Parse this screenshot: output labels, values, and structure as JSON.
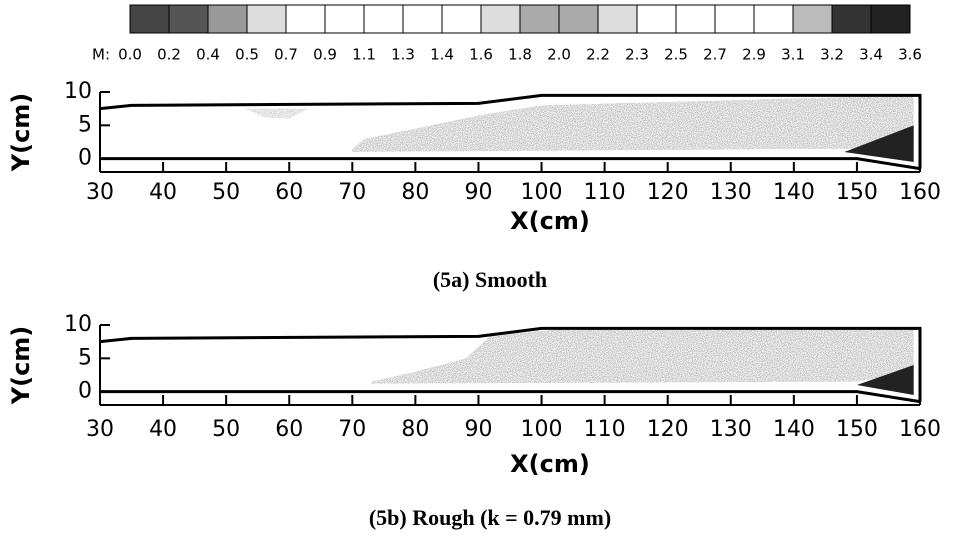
{
  "chart_data": [
    {
      "type": "colorbar",
      "label": "M:",
      "ticks": [
        {
          "value": 0,
          "label": "0.0"
        },
        0.2,
        0.4,
        0.5,
        0.7,
        0.9,
        1.1,
        1.3,
        1.4,
        1.6,
        1.8,
        {
          "value": 2,
          "label": "2.0"
        },
        2.2,
        2.3,
        2.5,
        2.7,
        2.9,
        3.1,
        3.2,
        3.4,
        3.6
      ],
      "colors": [
        "#444444",
        "#555555",
        "#999999",
        "#dddddd",
        "#ffffff",
        "#ffffff",
        "#ffffff",
        "#ffffff",
        "#ffffff",
        "#dddddd",
        "#aaaaaa",
        "#aaaaaa",
        "#dddddd",
        "#ffffff",
        "#ffffff",
        "#ffffff",
        "#ffffff",
        "#bbbbbb",
        "#333333",
        "#222222"
      ]
    },
    {
      "type": "contour",
      "title": "(5a) Smooth",
      "xlabel": "X(cm)",
      "ylabel": "Y(cm)",
      "xlim": [
        30,
        160
      ],
      "xticks": [
        30,
        40,
        50,
        60,
        70,
        80,
        90,
        100,
        110,
        120,
        130,
        140,
        150,
        160
      ],
      "ylim": [
        -2,
        10
      ],
      "yticks": [
        0,
        5,
        10
      ]
    },
    {
      "type": "contour",
      "title": "(5b) Rough (k = 0.79 mm)",
      "xlabel": "X(cm)",
      "ylabel": "Y(cm)",
      "xlim": [
        30,
        160
      ],
      "xticks": [
        30,
        40,
        50,
        60,
        70,
        80,
        90,
        100,
        110,
        120,
        130,
        140,
        150,
        160
      ],
      "ylim": [
        -2,
        10
      ],
      "yticks": [
        0,
        5,
        10
      ]
    }
  ]
}
